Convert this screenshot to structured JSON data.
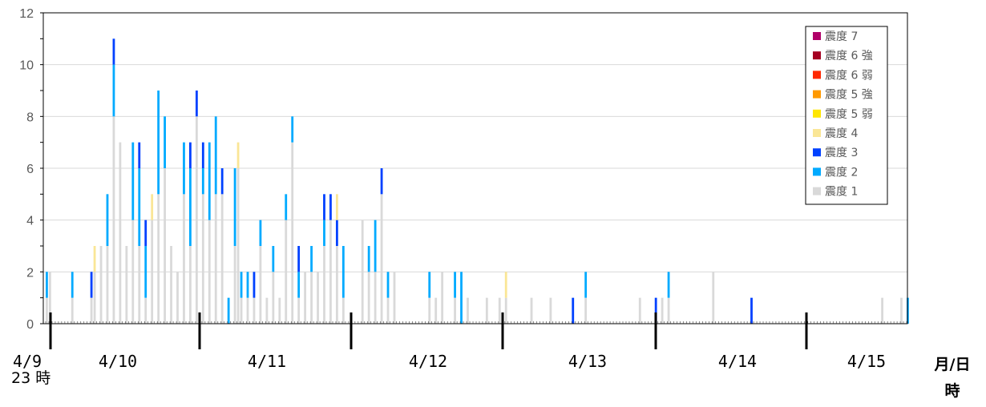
{
  "chart_data": {
    "type": "bar",
    "stacked": true,
    "ylim": [
      0,
      12
    ],
    "yticks": [
      0,
      2,
      4,
      6,
      8,
      10,
      12
    ],
    "x_unit": "hour",
    "x_start": "4/9 23時",
    "x_bins": 271,
    "date_labels": [
      "4/9",
      "4/10",
      "4/11",
      "4/12",
      "4/13",
      "4/14",
      "4/15"
    ],
    "start_time_label": "23 時",
    "axis_unit_label_top": "月/日",
    "axis_unit_label_bottom": "時",
    "legend_position": "top-right",
    "grid": "horizontal",
    "series": [
      {
        "name": "震度 7",
        "color": "#b00068"
      },
      {
        "name": "震度 6 強",
        "color": "#a50021"
      },
      {
        "name": "震度 6 弱",
        "color": "#ff2800"
      },
      {
        "name": "震度 5 強",
        "color": "#ff9900"
      },
      {
        "name": "震度 5 弱",
        "color": "#ffe600"
      },
      {
        "name": "震度 4",
        "color": "#fae696"
      },
      {
        "name": "震度 3",
        "color": "#0041ff"
      },
      {
        "name": "震度 2",
        "color": "#00aaff"
      },
      {
        "name": "震度 1",
        "color": "#d9d9d9"
      }
    ],
    "hourly_counts": [
      {
        "hour": 0,
        "s1": 1,
        "s2": 1
      },
      {
        "hour": 1,
        "s1": 2
      },
      {
        "hour": 8,
        "s1": 1,
        "s2": 1
      },
      {
        "hour": 14,
        "s1": 1,
        "s3": 1
      },
      {
        "hour": 15,
        "s1": 2,
        "s4": 1
      },
      {
        "hour": 17,
        "s1": 3
      },
      {
        "hour": 19,
        "s1": 3,
        "s2": 2
      },
      {
        "hour": 21,
        "s1": 8,
        "s2": 2,
        "s3": 1
      },
      {
        "hour": 23,
        "s1": 7
      },
      {
        "hour": 25,
        "s1": 3
      },
      {
        "hour": 27,
        "s1": 4,
        "s2": 3
      },
      {
        "hour": 29,
        "s1": 3,
        "s2": 3,
        "s3": 1
      },
      {
        "hour": 31,
        "s1": 1,
        "s2": 2,
        "s3": 1
      },
      {
        "hour": 33,
        "s1": 4,
        "s4": 1
      },
      {
        "hour": 35,
        "s1": 5,
        "s2": 4
      },
      {
        "hour": 37,
        "s1": 6,
        "s2": 2
      },
      {
        "hour": 39,
        "s1": 3
      },
      {
        "hour": 41,
        "s1": 2
      },
      {
        "hour": 43,
        "s1": 5,
        "s2": 2
      },
      {
        "hour": 45,
        "s1": 3,
        "s2": 3,
        "s3": 1
      },
      {
        "hour": 47,
        "s1": 8,
        "s3": 1
      },
      {
        "hour": 49,
        "s1": 5,
        "s2": 1,
        "s3": 1
      },
      {
        "hour": 51,
        "s1": 4,
        "s2": 3
      },
      {
        "hour": 53,
        "s1": 5,
        "s2": 3
      },
      {
        "hour": 55,
        "s1": 5,
        "s3": 1
      },
      {
        "hour": 57,
        "s1": 0,
        "s2": 1
      },
      {
        "hour": 59,
        "s1": 3,
        "s2": 3
      },
      {
        "hour": 60,
        "s1": 6,
        "s4": 1
      },
      {
        "hour": 61,
        "s1": 1,
        "s2": 1
      },
      {
        "hour": 63,
        "s1": 1,
        "s2": 1
      },
      {
        "hour": 65,
        "s1": 1,
        "s3": 1
      },
      {
        "hour": 67,
        "s1": 3,
        "s2": 1
      },
      {
        "hour": 69,
        "s1": 1
      },
      {
        "hour": 71,
        "s1": 2,
        "s2": 1
      },
      {
        "hour": 73,
        "s1": 1
      },
      {
        "hour": 75,
        "s1": 4,
        "s2": 1
      },
      {
        "hour": 77,
        "s1": 7,
        "s2": 1
      },
      {
        "hour": 79,
        "s1": 1,
        "s2": 1,
        "s3": 1
      },
      {
        "hour": 81,
        "s1": 2
      },
      {
        "hour": 83,
        "s1": 2,
        "s2": 1
      },
      {
        "hour": 85,
        "s1": 2
      },
      {
        "hour": 87,
        "s1": 3,
        "s2": 1,
        "s3": 1
      },
      {
        "hour": 89,
        "s1": 4,
        "s3": 1
      },
      {
        "hour": 91,
        "s1": 3,
        "s3": 1,
        "s4": 1
      },
      {
        "hour": 93,
        "s1": 1,
        "s2": 2
      },
      {
        "hour": 95,
        "s1": 0
      },
      {
        "hour": 99,
        "s1": 4
      },
      {
        "hour": 101,
        "s1": 2,
        "s2": 1
      },
      {
        "hour": 103,
        "s1": 2,
        "s2": 2
      },
      {
        "hour": 105,
        "s1": 5,
        "s3": 1
      },
      {
        "hour": 107,
        "s1": 1,
        "s2": 1
      },
      {
        "hour": 109,
        "s1": 2
      },
      {
        "hour": 120,
        "s1": 1,
        "s2": 1
      },
      {
        "hour": 122,
        "s1": 1
      },
      {
        "hour": 124,
        "s1": 2
      },
      {
        "hour": 128,
        "s1": 1,
        "s2": 1
      },
      {
        "hour": 130,
        "s1": 0,
        "s2": 2
      },
      {
        "hour": 132,
        "s1": 1
      },
      {
        "hour": 138,
        "s1": 1
      },
      {
        "hour": 142,
        "s1": 1
      },
      {
        "hour": 144,
        "s1": 1,
        "s4": 1
      },
      {
        "hour": 152,
        "s1": 1
      },
      {
        "hour": 158,
        "s1": 1
      },
      {
        "hour": 165,
        "s3": 1
      },
      {
        "hour": 169,
        "s1": 1,
        "s2": 1
      },
      {
        "hour": 186,
        "s1": 1
      },
      {
        "hour": 191,
        "s3": 1
      },
      {
        "hour": 193,
        "s1": 1
      },
      {
        "hour": 195,
        "s1": 1,
        "s2": 1
      },
      {
        "hour": 209,
        "s1": 2
      },
      {
        "hour": 221,
        "s3": 1
      },
      {
        "hour": 262,
        "s1": 1
      },
      {
        "hour": 268,
        "s1": 1
      },
      {
        "hour": 270,
        "s2": 1
      }
    ]
  }
}
